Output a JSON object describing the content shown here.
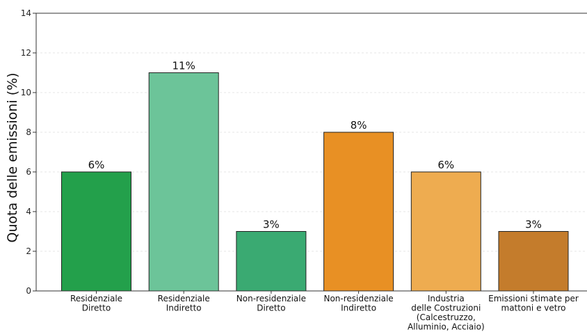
{
  "chart_data": {
    "type": "bar",
    "categories": [
      [
        "Residenziale",
        "Diretto"
      ],
      [
        "Residenziale",
        "Indiretto"
      ],
      [
        "Non-residenziale",
        "Diretto"
      ],
      [
        "Non-residenziale",
        "Indiretto"
      ],
      [
        "Industria",
        "delle Costruzioni",
        "(Calcestruzzo,",
        "Alluminio, Acciaio)"
      ],
      [
        "Emissioni stimate per",
        "mattoni e vetro"
      ]
    ],
    "values": [
      6,
      11,
      3,
      8,
      6,
      3
    ],
    "data_labels": [
      "6%",
      "11%",
      "3%",
      "8%",
      "6%",
      "3%"
    ],
    "colors": [
      "#23a04b",
      "#6cc499",
      "#3aaa72",
      "#e89024",
      "#eeac50",
      "#c47c2c"
    ],
    "ylabel": "Quota delle emissioni (%)",
    "ylim": [
      0,
      14
    ],
    "yticks": [
      0,
      2,
      4,
      6,
      8,
      10,
      12,
      14
    ],
    "grid": true
  }
}
